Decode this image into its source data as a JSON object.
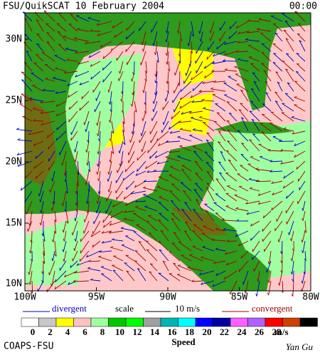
{
  "header": {
    "title": "FSU/QuikSCAT 10 February 2004",
    "time": "00:00"
  },
  "map": {
    "lat_labels": [
      "30N",
      "25N",
      "20N",
      "15N",
      "10N"
    ],
    "lon_labels": [
      "100W",
      "95W",
      "90W",
      "85W",
      "80W"
    ]
  },
  "legend": {
    "divergent": "divergent",
    "scale": "scale",
    "scale_value": "10 m/s",
    "convergent": "convergent"
  },
  "speed_scale": {
    "labels": [
      "0",
      "2",
      "4",
      "6",
      "8",
      "10",
      "12",
      "14",
      "16",
      "18",
      "20",
      "22",
      "24",
      "26",
      "28"
    ],
    "colors": [
      "#ffffff",
      "#c8c8c8",
      "#ffff00",
      "#ffc0c0",
      "#a0ffa0",
      "#00c800",
      "#00ff00",
      "#a0a0a0",
      "#00b4b4",
      "#00ffff",
      "#0000ff",
      "#0000a0",
      "#ff60ff",
      "#b060ff",
      "#ff0000",
      "#d04000",
      "#000000"
    ],
    "unit": "m/s",
    "title": "Speed"
  },
  "footer": {
    "credit": "COAPS-FSU",
    "author": "Yan Gu"
  }
}
